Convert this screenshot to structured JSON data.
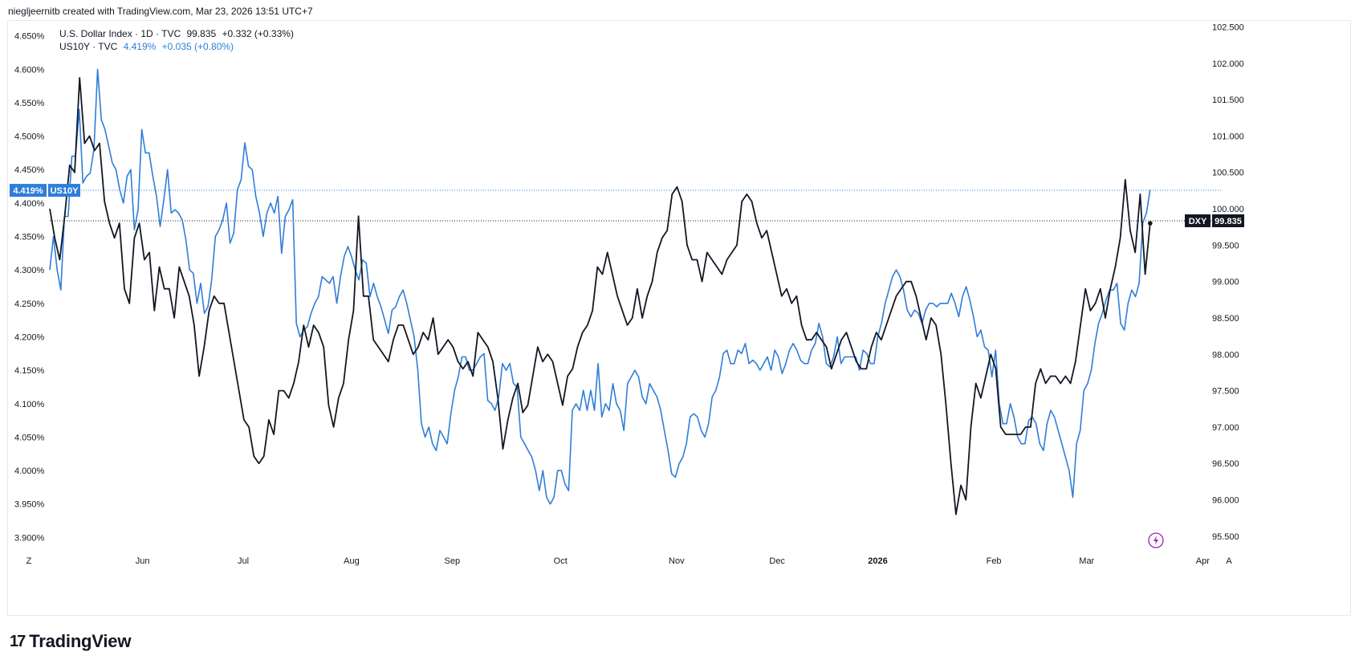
{
  "header": {
    "text": "niegljeernitb created with TradingView.com, Mar 23, 2026 13:51 UTC+7"
  },
  "legend": {
    "dxy": {
      "name": "U.S. Dollar Index · 1D · TVC",
      "last": "99.835",
      "change": "+0.332 (+0.33%)"
    },
    "us10y": {
      "name": "US10Y · TVC",
      "last": "4.419%",
      "change": "+0.035 (+0.80%)"
    }
  },
  "labels": {
    "left_tag_value": "4.419%",
    "left_tag_name": "US10Y",
    "right_tag_name": "DXY",
    "right_tag_value": "99.835"
  },
  "bottom_left_glyph": "Z",
  "bottom_right_glyph": "A",
  "footer": {
    "brand": "TradingView",
    "mark": "17"
  },
  "colors": {
    "dxy": "#131722",
    "us10y": "#2f7ed8",
    "accent": "#2962ff"
  },
  "chart_data": {
    "type": "line",
    "x_labels": [
      {
        "text": "Jun",
        "index": 12
      },
      {
        "text": "Jul",
        "index": 25
      },
      {
        "text": "Aug",
        "index": 39
      },
      {
        "text": "Sep",
        "index": 52
      },
      {
        "text": "Oct",
        "index": 66
      },
      {
        "text": "Nov",
        "index": 81
      },
      {
        "text": "Dec",
        "index": 94
      },
      {
        "text": "2026",
        "index": 107,
        "bold": true
      },
      {
        "text": "Feb",
        "index": 122
      },
      {
        "text": "Mar",
        "index": 134
      },
      {
        "text": "Apr",
        "index": 149
      }
    ],
    "left_axis": {
      "series": "US10Y",
      "range": [
        3.88,
        4.67
      ],
      "ticks": [
        "4.650%",
        "4.600%",
        "4.550%",
        "4.500%",
        "4.450%",
        "4.400%",
        "4.350%",
        "4.300%",
        "4.250%",
        "4.200%",
        "4.150%",
        "4.100%",
        "4.050%",
        "4.000%",
        "3.950%",
        "3.900%"
      ],
      "tick_values": [
        4.65,
        4.6,
        4.55,
        4.5,
        4.45,
        4.4,
        4.35,
        4.3,
        4.25,
        4.2,
        4.15,
        4.1,
        4.05,
        4.0,
        3.95,
        3.9
      ]
    },
    "right_axis": {
      "series": "DXY",
      "range": [
        95.3,
        102.56
      ],
      "ticks": [
        "102.500",
        "102.000",
        "101.500",
        "101.000",
        "100.500",
        "100.000",
        "99.500",
        "99.000",
        "98.500",
        "98.000",
        "97.500",
        "97.000",
        "96.500",
        "96.000",
        "95.500"
      ],
      "tick_values": [
        102.5,
        102.0,
        101.5,
        101.0,
        100.5,
        100.0,
        99.5,
        99.0,
        98.5,
        98.0,
        97.5,
        97.0,
        96.5,
        96.0,
        95.5
      ]
    },
    "series": [
      {
        "name": "US10Y",
        "axis": "left",
        "color": "#2f7ed8",
        "values": [
          4.3,
          4.35,
          4.3,
          4.27,
          4.38,
          4.38,
          4.47,
          4.47,
          4.54,
          4.43,
          4.44,
          4.445,
          4.48,
          4.6,
          4.525,
          4.51,
          4.485,
          4.46,
          4.45,
          4.42,
          4.4,
          4.44,
          4.45,
          4.36,
          4.39,
          4.51,
          4.475,
          4.475,
          4.44,
          4.41,
          4.365,
          4.405,
          4.45,
          4.385,
          4.39,
          4.385,
          4.375,
          4.345,
          4.3,
          4.295,
          4.25,
          4.28,
          4.235,
          4.245,
          4.285,
          4.35,
          4.36,
          4.375,
          4.4,
          4.34,
          4.355,
          4.42,
          4.435,
          4.49,
          4.455,
          4.45,
          4.41,
          4.385,
          4.35,
          4.385,
          4.4,
          4.385,
          4.41,
          4.325,
          4.38,
          4.39,
          4.405,
          4.22,
          4.2,
          4.21,
          4.215,
          4.235,
          4.25,
          4.26,
          4.29,
          4.285,
          4.28,
          4.29,
          4.25,
          4.29,
          4.32,
          4.335,
          4.32,
          4.3,
          4.285,
          4.315,
          4.31,
          4.26,
          4.28,
          4.26,
          4.245,
          4.225,
          4.205,
          4.24,
          4.245,
          4.26,
          4.27,
          4.25,
          4.225,
          4.2,
          4.15,
          4.07,
          4.05,
          4.065,
          4.04,
          4.03,
          4.06,
          4.05,
          4.04,
          4.085,
          4.12,
          4.14,
          4.17,
          4.17,
          4.15,
          4.15,
          4.16,
          4.17,
          4.175,
          4.105,
          4.1,
          4.09,
          4.11,
          4.16,
          4.15,
          4.16,
          4.13,
          4.125,
          4.05,
          4.04,
          4.03,
          4.02,
          4.0,
          3.97,
          4.0,
          3.96,
          3.95,
          3.96,
          4.0,
          4.0,
          3.98,
          3.97,
          4.09,
          4.1,
          4.09,
          4.12,
          4.09,
          4.12,
          4.09,
          4.16,
          4.08,
          4.1,
          4.09,
          4.13,
          4.1,
          4.09,
          4.06,
          4.13,
          4.14,
          4.15,
          4.14,
          4.11,
          4.1,
          4.13,
          4.12,
          4.11,
          4.09,
          4.06,
          4.03,
          3.995,
          3.99,
          4.01,
          4.02,
          4.04,
          4.08,
          4.085,
          4.08,
          4.06,
          4.05,
          4.07,
          4.11,
          4.12,
          4.14,
          4.175,
          4.18,
          4.16,
          4.16,
          4.18,
          4.175,
          4.19,
          4.16,
          4.165,
          4.16,
          4.15,
          4.16,
          4.17,
          4.15,
          4.18,
          4.17,
          4.145,
          4.16,
          4.18,
          4.19,
          4.18,
          4.165,
          4.16,
          4.16,
          4.18,
          4.19,
          4.22,
          4.2,
          4.16,
          4.155,
          4.17,
          4.2,
          4.16,
          4.17,
          4.17,
          4.17,
          4.17,
          4.15,
          4.18,
          4.175,
          4.16,
          4.16,
          4.2,
          4.22,
          4.25,
          4.27,
          4.29,
          4.3,
          4.29,
          4.27,
          4.24,
          4.23,
          4.24,
          4.235,
          4.22,
          4.24,
          4.25,
          4.25,
          4.245,
          4.25,
          4.25,
          4.25,
          4.265,
          4.25,
          4.23,
          4.26,
          4.275,
          4.255,
          4.23,
          4.2,
          4.21,
          4.185,
          4.18,
          4.14,
          4.18,
          4.1,
          4.07,
          4.07,
          4.1,
          4.08,
          4.05,
          4.04,
          4.04,
          4.075,
          4.08,
          4.07,
          4.04,
          4.03,
          4.07,
          4.09,
          4.08,
          4.06,
          4.04,
          4.02,
          4.0,
          3.96,
          4.04,
          4.06,
          4.12,
          4.13,
          4.15,
          4.19,
          4.22,
          4.235,
          4.255,
          4.27,
          4.27,
          4.28,
          4.22,
          4.21,
          4.25,
          4.27,
          4.26,
          4.28,
          4.37,
          4.385,
          4.42
        ],
        "start_index": 0,
        "step": 0.5
      },
      {
        "name": "DXY",
        "axis": "right",
        "color": "#131722",
        "values": [
          100.0,
          99.6,
          99.3,
          99.9,
          100.6,
          100.5,
          101.8,
          100.9,
          101.0,
          100.8,
          100.9,
          100.1,
          99.8,
          99.6,
          99.8,
          98.9,
          98.7,
          99.6,
          99.8,
          99.3,
          99.4,
          98.6,
          99.2,
          98.9,
          98.9,
          98.5,
          99.2,
          99.0,
          98.8,
          98.4,
          97.7,
          98.1,
          98.6,
          98.8,
          98.7,
          98.7,
          98.3,
          97.9,
          97.5,
          97.1,
          97.0,
          96.6,
          96.5,
          96.6,
          97.1,
          96.9,
          97.5,
          97.5,
          97.4,
          97.6,
          97.9,
          98.4,
          98.1,
          98.4,
          98.3,
          98.1,
          97.3,
          97.0,
          97.4,
          97.6,
          98.2,
          98.6,
          99.9,
          98.8,
          98.8,
          98.2,
          98.1,
          98.0,
          97.9,
          98.2,
          98.4,
          98.4,
          98.2,
          98.0,
          98.1,
          98.3,
          98.2,
          98.5,
          98.0,
          98.1,
          98.2,
          98.1,
          97.9,
          97.8,
          97.9,
          97.7,
          98.3,
          98.2,
          98.1,
          97.9,
          97.4,
          96.7,
          97.1,
          97.4,
          97.6,
          97.2,
          97.3,
          97.7,
          98.1,
          97.9,
          98.0,
          97.9,
          97.6,
          97.3,
          97.7,
          97.8,
          98.1,
          98.3,
          98.4,
          98.6,
          99.2,
          99.1,
          99.4,
          99.1,
          98.8,
          98.6,
          98.4,
          98.5,
          98.9,
          98.5,
          98.8,
          99.0,
          99.4,
          99.6,
          99.7,
          100.2,
          100.3,
          100.1,
          99.5,
          99.3,
          99.3,
          99.0,
          99.4,
          99.3,
          99.2,
          99.1,
          99.3,
          99.4,
          99.5,
          100.1,
          100.2,
          100.1,
          99.8,
          99.6,
          99.7,
          99.4,
          99.1,
          98.8,
          98.9,
          98.7,
          98.8,
          98.4,
          98.2,
          98.2,
          98.3,
          98.2,
          98.1,
          97.8,
          98.0,
          98.2,
          98.3,
          98.1,
          97.9,
          97.8,
          97.8,
          98.1,
          98.3,
          98.2,
          98.4,
          98.6,
          98.8,
          98.9,
          99.0,
          99.0,
          98.8,
          98.5,
          98.2,
          98.5,
          98.4,
          98.0,
          97.3,
          96.5,
          95.8,
          96.2,
          96.0,
          97.0,
          97.6,
          97.4,
          97.7,
          98.0,
          97.8,
          97.0,
          96.9,
          96.9,
          96.9,
          96.9,
          97.0,
          97.0,
          97.6,
          97.8,
          97.6,
          97.7,
          97.7,
          97.6,
          97.7,
          97.6,
          97.9,
          98.4,
          98.9,
          98.6,
          98.7,
          98.9,
          98.5,
          98.9,
          99.2,
          99.6,
          100.4,
          99.7,
          99.4,
          100.2,
          99.1,
          99.8
        ]
      }
    ],
    "reference_lines": [
      {
        "axis": "left",
        "value": 4.419,
        "color": "#2f7ed8"
      },
      {
        "axis": "right",
        "value": 99.835,
        "color": "#131722"
      }
    ]
  }
}
